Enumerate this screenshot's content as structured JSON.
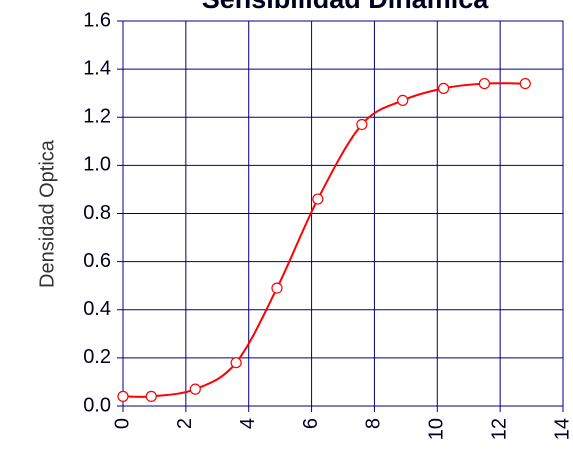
{
  "chart_data": {
    "type": "line",
    "title": "Sensibilidad Dinámica",
    "y_label": "Densidad Optica",
    "x": [
      0,
      0.9,
      2.3,
      3.6,
      4.9,
      6.2,
      7.6,
      8.9,
      10.2,
      11.5,
      12.8
    ],
    "series": [
      {
        "name": "Densidad Optica",
        "color": "#ff0000",
        "values": [
          0.04,
          0.04,
          0.07,
          0.18,
          0.49,
          0.86,
          1.17,
          1.27,
          1.32,
          1.34,
          1.34
        ]
      }
    ],
    "xlim": [
      0,
      14
    ],
    "xticks": [
      0,
      2,
      4,
      6,
      8,
      10,
      12,
      14
    ],
    "ylim": [
      0,
      1.6
    ],
    "yticks": [
      {
        "value": 0,
        "label": "0.0"
      },
      0.2,
      0.4,
      0.6,
      0.8,
      {
        "value": 1,
        "label": "1.0"
      },
      1.2,
      1.4,
      1.6
    ],
    "grid": true,
    "grid_color": "#000080"
  }
}
